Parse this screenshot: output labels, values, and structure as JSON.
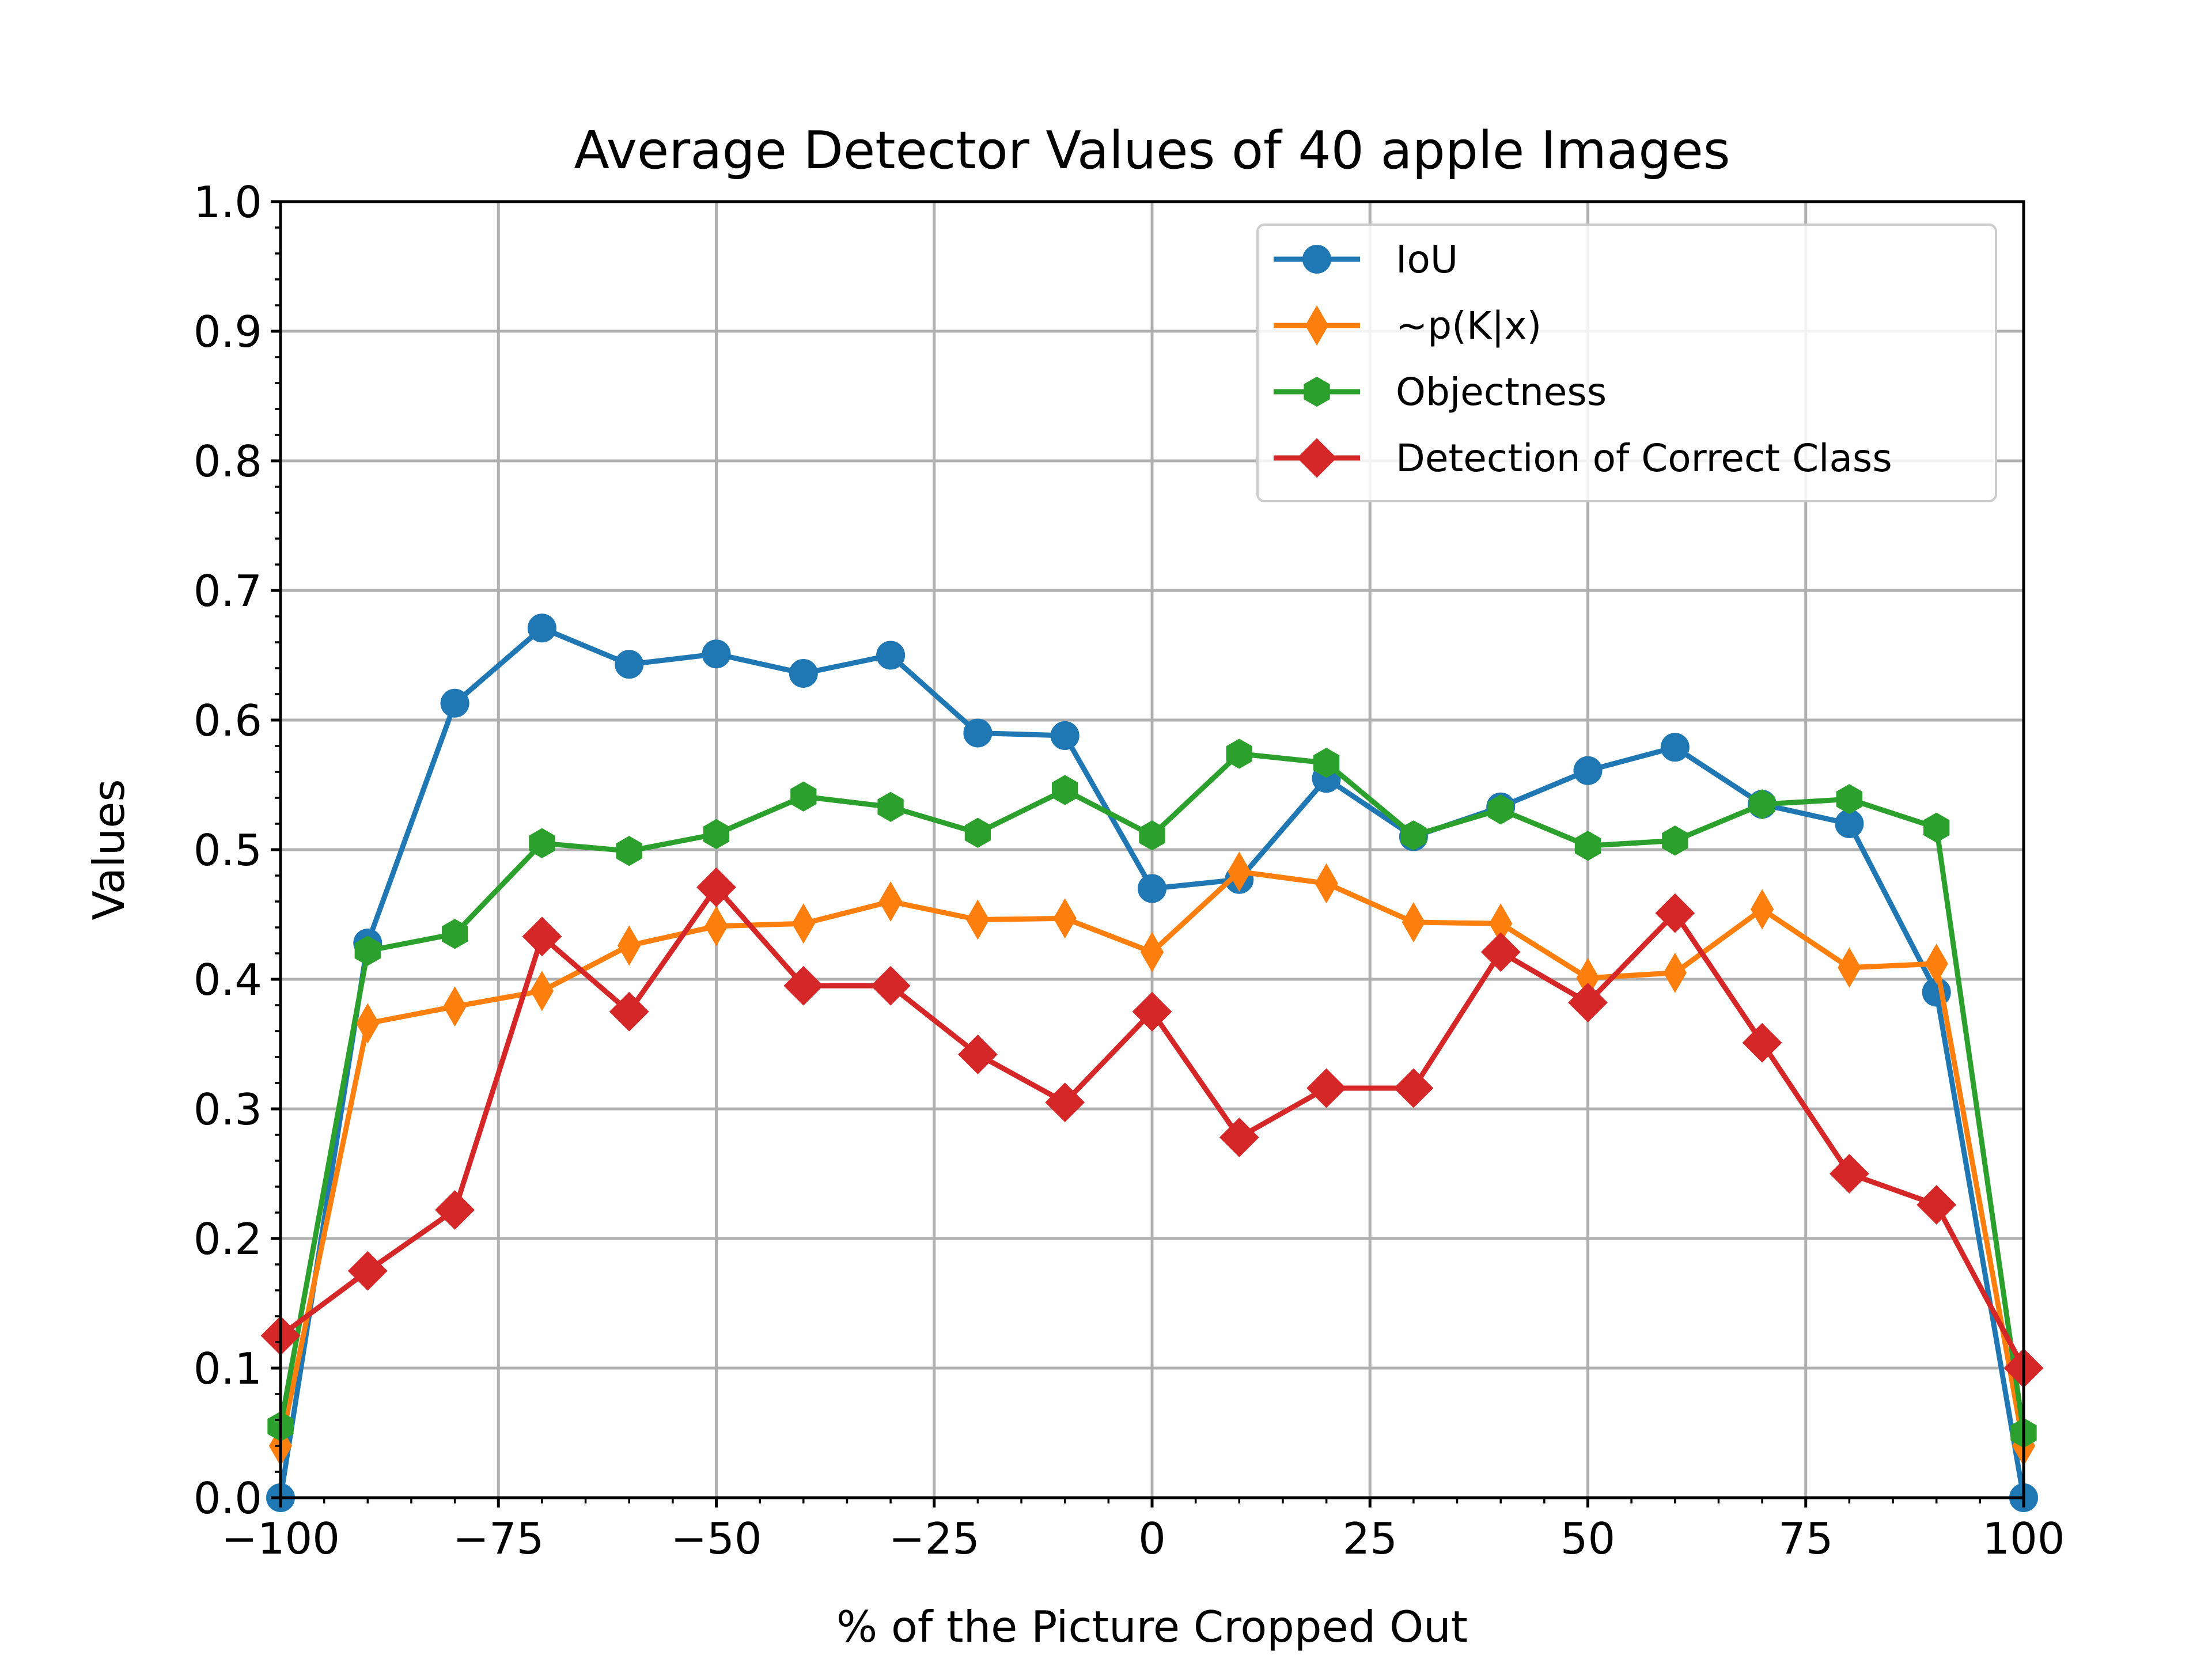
{
  "chart_data": {
    "type": "line",
    "title": "Average Detector Values of 40 apple Images",
    "xlabel": "% of the Picture Cropped Out",
    "ylabel": "Values",
    "xlim": [
      -100,
      100
    ],
    "ylim": [
      0.0,
      1.0
    ],
    "grid": true,
    "legend_position": "top-right",
    "x_ticks": [
      -100,
      -75,
      -50,
      -25,
      0,
      25,
      50,
      75,
      100
    ],
    "x_tick_labels": [
      "−100",
      "−75",
      "−50",
      "−25",
      "0",
      "25",
      "50",
      "75",
      "100"
    ],
    "y_ticks": [
      0.0,
      0.1,
      0.2,
      0.3,
      0.4,
      0.5,
      0.6,
      0.7,
      0.8,
      0.9,
      1.0
    ],
    "y_tick_labels": [
      "0.0",
      "0.1",
      "0.2",
      "0.3",
      "0.4",
      "0.5",
      "0.6",
      "0.7",
      "0.8",
      "0.9",
      "1.0"
    ],
    "x": [
      -100,
      -90,
      -80,
      -70,
      -60,
      -50,
      -40,
      -30,
      -20,
      -10,
      0,
      10,
      20,
      30,
      40,
      50,
      60,
      70,
      80,
      90,
      100
    ],
    "series": [
      {
        "name": "IoU",
        "color": "#1f77b4",
        "marker": "circle",
        "values": [
          0.0,
          0.428,
          0.613,
          0.671,
          0.643,
          0.651,
          0.636,
          0.65,
          0.59,
          0.588,
          0.47,
          0.477,
          0.555,
          0.51,
          0.533,
          0.561,
          0.579,
          0.535,
          0.52,
          0.39,
          0.0
        ]
      },
      {
        "name": "~p(K|x)",
        "color": "#ff7f0e",
        "marker": "thin_diamond",
        "values": [
          0.04,
          0.366,
          0.379,
          0.391,
          0.426,
          0.441,
          0.443,
          0.46,
          0.446,
          0.447,
          0.421,
          0.483,
          0.474,
          0.444,
          0.443,
          0.401,
          0.405,
          0.454,
          0.409,
          0.412,
          0.04
        ]
      },
      {
        "name": "Objectness",
        "color": "#2ca02c",
        "marker": "hexagon",
        "values": [
          0.055,
          0.422,
          0.435,
          0.505,
          0.499,
          0.512,
          0.541,
          0.533,
          0.513,
          0.546,
          0.511,
          0.574,
          0.567,
          0.511,
          0.531,
          0.503,
          0.507,
          0.535,
          0.539,
          0.517,
          0.05
        ]
      },
      {
        "name": "Detection of Correct Class",
        "color": "#d62728",
        "marker": "diamond",
        "values": [
          0.125,
          0.175,
          0.222,
          0.433,
          0.375,
          0.471,
          0.395,
          0.395,
          0.342,
          0.305,
          0.375,
          0.278,
          0.316,
          0.316,
          0.421,
          0.382,
          0.451,
          0.351,
          0.25,
          0.226,
          0.1
        ]
      }
    ]
  }
}
